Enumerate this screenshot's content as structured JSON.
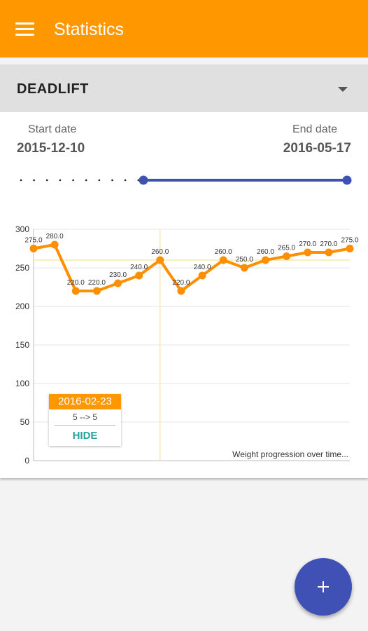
{
  "appbar": {
    "title": "Statistics",
    "menu_icon": "hamburger-menu-icon",
    "color": "#ff9800"
  },
  "exercise_selector": {
    "value": "DEADLIFT"
  },
  "date_range": {
    "start_label": "Start date",
    "start_value": "2015-12-10",
    "end_label": "End date",
    "end_value": "2016-05-17",
    "slider_start_fraction": 0.38,
    "slider_end_fraction": 1.0,
    "color": "#3f51b5"
  },
  "chart_data": {
    "type": "line",
    "y_ticks": [
      "0",
      "50",
      "100",
      "150",
      "200",
      "250",
      "300"
    ],
    "ylim": [
      0,
      300
    ],
    "values": [
      275,
      280,
      220,
      220,
      230,
      240,
      260,
      220,
      240,
      260,
      250,
      260,
      265,
      270,
      270,
      275
    ],
    "point_labels": [
      "275.0",
      "280.0",
      "220.0",
      "220.0",
      "230.0",
      "240.0",
      "260.0",
      "220.0",
      "240.0",
      "260.0",
      "250.0",
      "260.0",
      "265.0",
      "270.0",
      "270.0",
      "275.0"
    ],
    "highlight_index": 6,
    "line_color": "#ff8f00",
    "grid": true,
    "description": "Weight progression over time..."
  },
  "tooltip": {
    "date": "2016-02-23",
    "change": "5 --> 5",
    "hide_label": "HIDE"
  },
  "fab": {
    "icon": "plus-icon",
    "color": "#3f51b5"
  }
}
